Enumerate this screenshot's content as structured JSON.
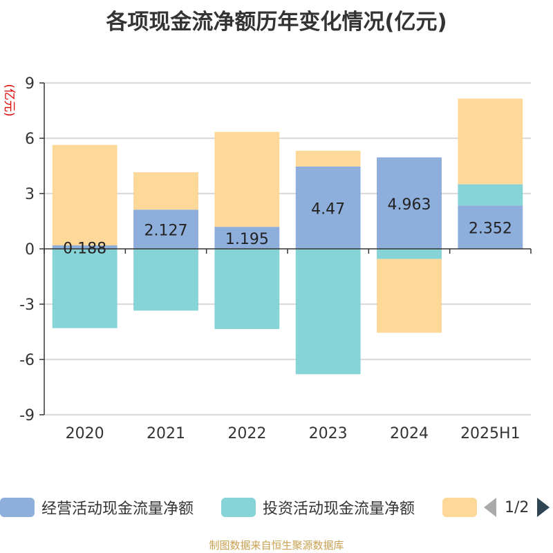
{
  "title": "各项现金流净额历年变化情况(亿元)",
  "source": "制图数据来自恒生聚源数据库",
  "chart_data": {
    "type": "bar",
    "stacked": true,
    "ylabel": "(亿元)",
    "ylim": [
      -9,
      9
    ],
    "yticks": [
      9,
      6,
      3,
      0,
      -3,
      -6,
      -9
    ],
    "categories": [
      "2020",
      "2021",
      "2022",
      "2023",
      "2024",
      "2025H1"
    ],
    "series": [
      {
        "name": "经营活动现金流量净额",
        "color": "#8eaedb",
        "values": [
          0.188,
          2.127,
          1.195,
          4.47,
          4.963,
          2.352
        ],
        "labels": [
          "0.188",
          "2.127",
          "1.195",
          "4.47",
          "4.963",
          "2.352"
        ]
      },
      {
        "name": "投资活动现金流量净额",
        "color": "#86d4d7",
        "values": [
          -4.3,
          -3.35,
          -4.35,
          -6.8,
          -0.55,
          1.15
        ]
      },
      {
        "name": "",
        "color": "#fdd899",
        "values": [
          5.45,
          2.03,
          5.15,
          0.85,
          -4.0,
          4.65
        ]
      }
    ],
    "grid": true,
    "legend_position": "bottom"
  },
  "legend": {
    "items": [
      "经营活动现金流量净额",
      "投资活动现金流量净额",
      ""
    ],
    "page": "1/2"
  }
}
